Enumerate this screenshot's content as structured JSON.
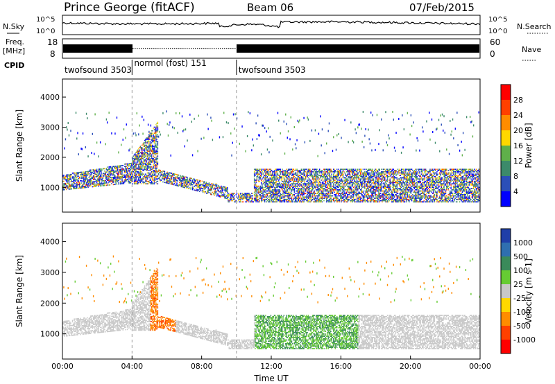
{
  "header": {
    "site": "Prince George (fitACF)",
    "beam": "Beam 06",
    "date": "07/Feb/2015"
  },
  "strip": {
    "nsky_label": "N.Sky",
    "nsearch_label": "N.Search",
    "freq_label_1": "Freq.",
    "freq_label_2": "[MHz]",
    "nave_label": "Nave",
    "cpid_label": "CPID",
    "noise_ticks_left": [
      "10^5",
      "10^0"
    ],
    "noise_ticks_right": [
      "10^5",
      "10^0"
    ],
    "freq_ticks": [
      "18",
      "8"
    ],
    "nave_ticks": [
      "60",
      "0"
    ]
  },
  "cpid_segments": [
    {
      "label": "twofsound 3503",
      "start_hour": 0,
      "end_hour": 4
    },
    {
      "label": "normol (fost) 151",
      "start_hour": 4,
      "end_hour": 10
    },
    {
      "label": "twofsound 3503",
      "start_hour": 10,
      "end_hour": 24
    }
  ],
  "chart_data": [
    {
      "type": "heatmap",
      "quantity": "Power",
      "ylabel": "Slant Range [km]",
      "xlim_hours": [
        0,
        24
      ],
      "ylim": [
        180,
        4600
      ],
      "yticks": [
        "1000",
        "2000",
        "3000",
        "4000"
      ],
      "colorbar_label": "Power [dB]",
      "colorbar_ticks": [
        "4",
        "8",
        "12",
        "16",
        "20",
        "24",
        "28"
      ],
      "colorbar_range": [
        0,
        30
      ],
      "colors": [
        "#0000ff",
        "#2b4fb8",
        "#3c8a6a",
        "#5fb04a",
        "#ffd800",
        "#ff8c00",
        "#ff4000",
        "#ff0000"
      ]
    },
    {
      "type": "heatmap",
      "quantity": "Velocity",
      "ylabel": "Slant Range [km]",
      "xlabel": "Time UT",
      "xlim_hours": [
        0,
        24
      ],
      "ylim": [
        180,
        4600
      ],
      "xticks": [
        "00:00",
        "04:00",
        "08:00",
        "12:00",
        "16:00",
        "20:00",
        "00:00"
      ],
      "yticks": [
        "1000",
        "2000",
        "3000",
        "4000"
      ],
      "colorbar_label": "Velocity [m s-1]",
      "colorbar_ticks": [
        "1000",
        "500",
        "100",
        "25",
        "-25",
        "-100",
        "-500",
        "-1000"
      ],
      "colors": [
        "#1f3fa8",
        "#2f6fb0",
        "#3a8a5a",
        "#66cc33",
        "#c8c8c8",
        "#ffd800",
        "#ff8c00",
        "#ff4000",
        "#ff0000"
      ]
    }
  ]
}
